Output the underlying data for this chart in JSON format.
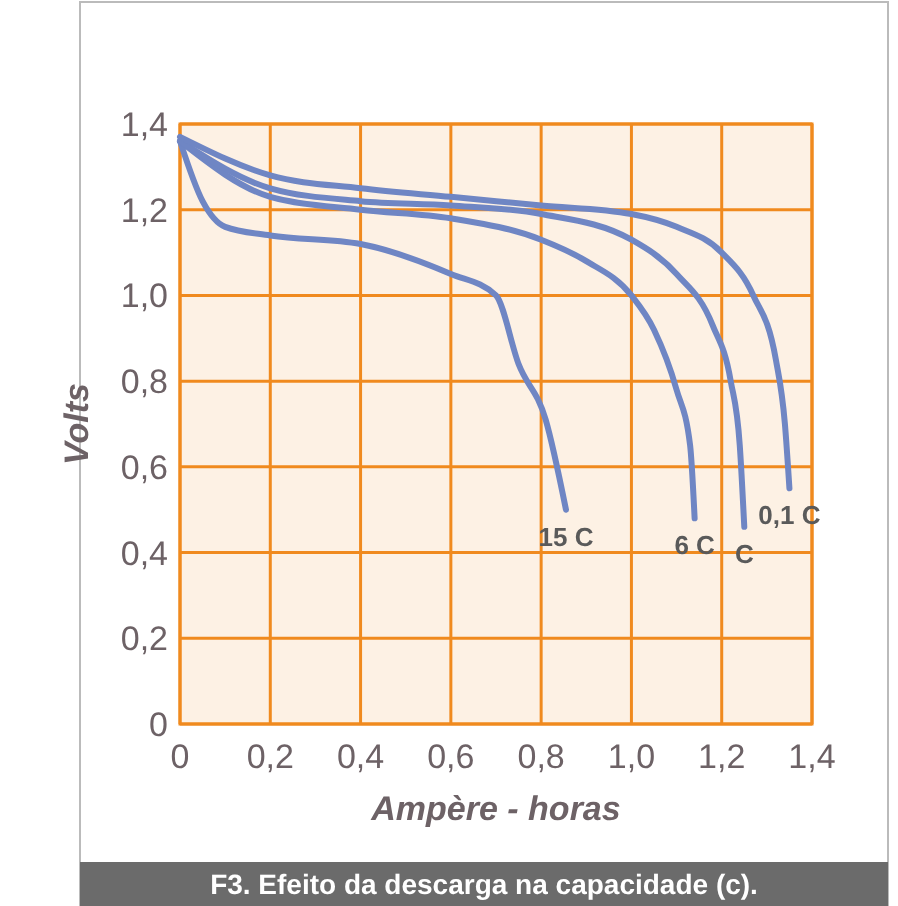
{
  "chart_data": {
    "type": "line",
    "xlabel": "Ampère - horas",
    "ylabel": "Volts",
    "xlim": [
      0,
      1.4
    ],
    "ylim": [
      0,
      1.4
    ],
    "xticks": [
      0,
      {
        "value": 0.2,
        "label": "0,2"
      },
      {
        "value": 0.4,
        "label": "0,4"
      },
      {
        "value": 0.6,
        "label": "0,6"
      },
      {
        "value": 0.8,
        "label": "0,8"
      },
      {
        "value": 1.0,
        "label": "1,0"
      },
      {
        "value": 1.2,
        "label": "1,2"
      },
      {
        "value": 1.4,
        "label": "1,4"
      }
    ],
    "yticks": [
      0,
      {
        "value": 0.2,
        "label": "0,2"
      },
      {
        "value": 0.4,
        "label": "0,4"
      },
      {
        "value": 0.6,
        "label": "0,6"
      },
      {
        "value": 0.8,
        "label": "0,8"
      },
      {
        "value": 1.0,
        "label": "1,0"
      },
      {
        "value": 1.2,
        "label": "1,2"
      },
      {
        "value": 1.4,
        "label": "1,4"
      }
    ],
    "grid": true,
    "marker": "none",
    "line_style": "solid",
    "series": [
      {
        "color": "#6f86c4",
        "x": [
          0,
          0.05,
          0.1,
          0.2,
          0.4,
          0.6,
          0.7,
          0.75,
          0.81,
          0.855
        ],
        "values": [
          1.36,
          1.22,
          1.16,
          1.14,
          1.12,
          1.05,
          1.0,
          0.84,
          0.71,
          0.5
        ]
      },
      {
        "color": "#6f86c4",
        "x": [
          0,
          0.2,
          0.4,
          0.6,
          0.8,
          0.9,
          1.0,
          1.05,
          1.1,
          1.13,
          1.14
        ],
        "values": [
          1.36,
          1.23,
          1.2,
          1.18,
          1.13,
          1.08,
          1.0,
          0.92,
          0.78,
          0.65,
          0.48
        ]
      },
      {
        "color": "#6f86c4",
        "x": [
          0,
          0.2,
          0.4,
          0.6,
          0.8,
          1.0,
          1.1,
          1.18,
          1.22,
          1.24,
          1.25
        ],
        "values": [
          1.36,
          1.25,
          1.22,
          1.21,
          1.19,
          1.13,
          1.05,
          0.93,
          0.8,
          0.65,
          0.46
        ]
      },
      {
        "color": "#6f86c4",
        "x": [
          0,
          0.2,
          0.4,
          0.6,
          0.8,
          1.0,
          1.1,
          1.2,
          1.27,
          1.32,
          1.34,
          1.35
        ],
        "values": [
          1.37,
          1.28,
          1.25,
          1.23,
          1.21,
          1.19,
          1.16,
          1.1,
          1.0,
          0.85,
          0.7,
          0.55
        ]
      }
    ],
    "annotations": [
      {
        "text": "15 C",
        "x": 0.855,
        "y": 0.5
      },
      {
        "text": "6 C",
        "x": 1.14,
        "y": 0.48
      },
      {
        "text": "C",
        "x": 1.25,
        "y": 0.46
      },
      {
        "text": "0,1 C",
        "x": 1.35,
        "y": 0.55
      },
      "F3. Efeito da descarga na capacidade (c)."
    ]
  }
}
